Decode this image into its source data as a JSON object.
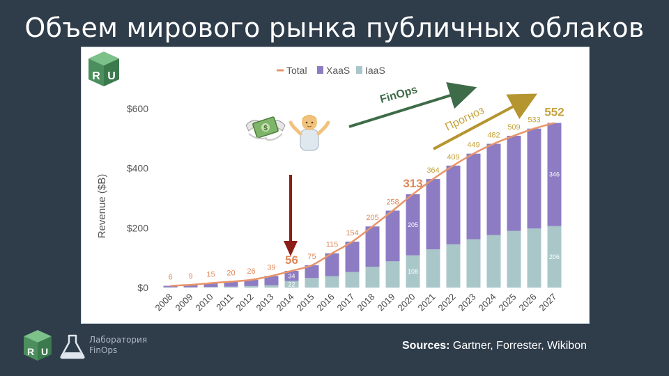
{
  "slide": {
    "title": "Объем мирового рынка публичных облаков",
    "lab_name_line1": "Лаборатория",
    "lab_name_line2": "FinOps",
    "sources_label": "Sources:",
    "sources_text": "Gartner, Forrester, Wikibon",
    "logo_letters": "RU"
  },
  "colors": {
    "background": "#2f3c4a",
    "xaas": "#8d7cc3",
    "iaas": "#a9c7c8",
    "total_line": "#e8956a",
    "total_label": "#e0885a",
    "forecast_label": "#c4a23a",
    "finops_arrow": "#3e6b48",
    "forecast_arrow": "#b5952f",
    "down_arrow": "#8b1f18",
    "logo_green": "#5a9c6e"
  },
  "chart_data": {
    "type": "bar",
    "stacked": true,
    "categories": [
      "2008",
      "2009",
      "2010",
      "2011",
      "2012",
      "2013",
      "2014",
      "2015",
      "2016",
      "2017",
      "2018",
      "2019",
      "2020",
      "2021",
      "2022",
      "2023",
      "2024",
      "2025",
      "2026",
      "2027"
    ],
    "series": [
      {
        "name": "IaaS",
        "values": [
          1,
          1,
          2,
          3,
          5,
          8,
          22,
          32,
          38,
          52,
          70,
          88,
          108,
          128,
          145,
          162,
          176,
          190,
          198,
          206
        ]
      },
      {
        "name": "XaaS",
        "values": [
          5,
          8,
          13,
          17,
          21,
          31,
          34,
          43,
          77,
          102,
          135,
          170,
          205,
          236,
          264,
          287,
          306,
          319,
          335,
          346
        ]
      }
    ],
    "totals": [
      6,
      9,
      15,
      20,
      26,
      39,
      56,
      75,
      115,
      154,
      205,
      258,
      313,
      364,
      409,
      449,
      482,
      509,
      533,
      552
    ],
    "total_series_name": "Total",
    "highlighted_totals": [
      "56",
      "313",
      "552"
    ],
    "segment_labels": [
      {
        "year": "2014",
        "iaas": "22",
        "xaas": "34"
      },
      {
        "year": "2020",
        "iaas": "108",
        "xaas": "205"
      },
      {
        "year": "2027",
        "iaas": "206",
        "xaas": "346"
      }
    ],
    "y_ticks": [
      "$0",
      "$200",
      "$400",
      "$600"
    ],
    "y_tick_values": [
      0,
      200,
      400,
      600
    ],
    "ylim": [
      0,
      640
    ],
    "ylabel": "Revenue ($B)",
    "legend": [
      "Total",
      "XaaS",
      "IaaS"
    ],
    "legend_position": "top-center",
    "grid": false,
    "annotations": {
      "finops": "FinOps",
      "forecast": "Прогноз"
    },
    "icons": [
      "money-with-wings-icon",
      "person-shrugging-icon"
    ]
  }
}
